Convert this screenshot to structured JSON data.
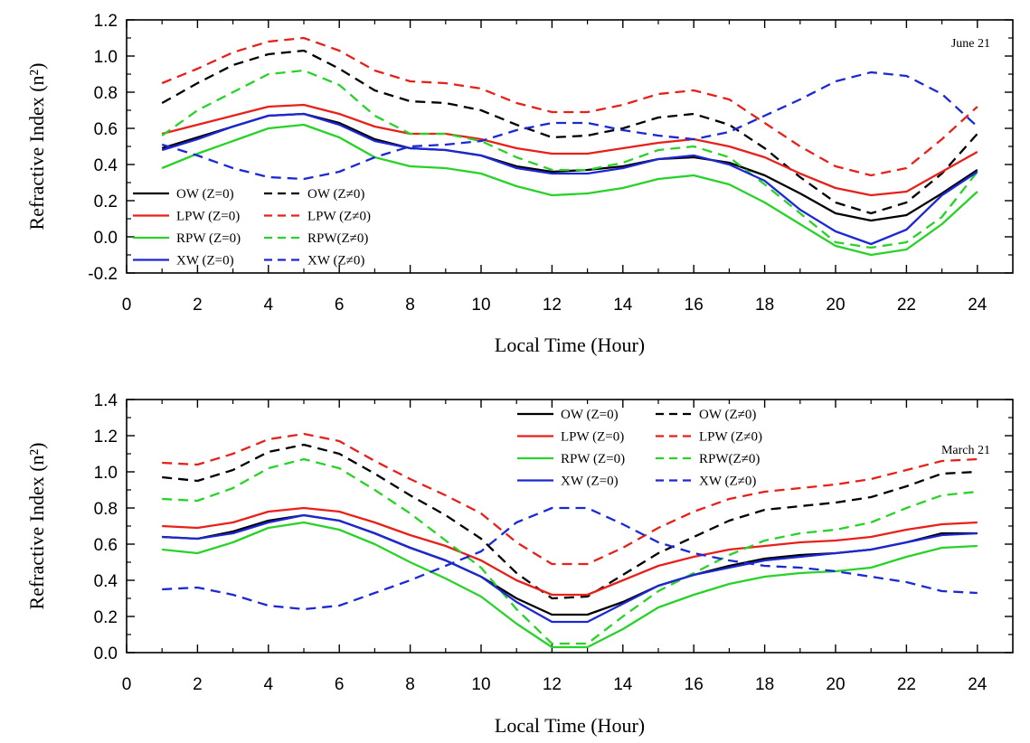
{
  "chart_data": [
    {
      "type": "line",
      "annotation": "June 21",
      "xlabel": "Local Time (Hour)",
      "ylabel": "Refractive Index (n²)",
      "xlim": [
        0,
        25
      ],
      "ylim": [
        -0.2,
        1.2
      ],
      "xticks": [
        0,
        2,
        4,
        6,
        8,
        10,
        12,
        14,
        16,
        18,
        20,
        22,
        24
      ],
      "yticks": [
        -0.2,
        0.0,
        0.2,
        0.4,
        0.6,
        0.8,
        1.0,
        1.2
      ],
      "ytick_labels": [
        "-0.2",
        "0.0",
        "0.2",
        "0.4",
        "0.6",
        "0.8",
        "1.0",
        "1.2"
      ],
      "legend_position": "bottom-left",
      "x": [
        1,
        2,
        3,
        4,
        5,
        6,
        7,
        8,
        9,
        10,
        11,
        12,
        13,
        14,
        15,
        16,
        17,
        18,
        19,
        20,
        21,
        22,
        23,
        24
      ],
      "series": [
        {
          "name": "OW (Z=0)",
          "color": "#000000",
          "dash": "solid",
          "values": [
            0.49,
            0.55,
            0.61,
            0.67,
            0.68,
            0.63,
            0.54,
            0.49,
            0.48,
            0.45,
            0.39,
            0.36,
            0.37,
            0.39,
            0.43,
            0.44,
            0.41,
            0.34,
            0.24,
            0.13,
            0.09,
            0.12,
            0.24,
            0.37
          ]
        },
        {
          "name": "OW (Z≠0)",
          "color": "#000000",
          "dash": "dashed",
          "values": [
            0.74,
            0.85,
            0.95,
            1.01,
            1.03,
            0.93,
            0.81,
            0.75,
            0.74,
            0.7,
            0.62,
            0.55,
            0.56,
            0.6,
            0.66,
            0.68,
            0.62,
            0.49,
            0.33,
            0.19,
            0.13,
            0.19,
            0.35,
            0.57
          ]
        },
        {
          "name": "LPW (Z=0)",
          "color": "#e8201a",
          "dash": "solid",
          "values": [
            0.57,
            0.62,
            0.67,
            0.72,
            0.73,
            0.68,
            0.61,
            0.57,
            0.57,
            0.54,
            0.49,
            0.46,
            0.46,
            0.49,
            0.52,
            0.54,
            0.5,
            0.44,
            0.35,
            0.27,
            0.23,
            0.25,
            0.36,
            0.47
          ]
        },
        {
          "name": "LPW (Z≠0)",
          "color": "#e8201a",
          "dash": "dashed",
          "values": [
            0.85,
            0.93,
            1.02,
            1.08,
            1.1,
            1.03,
            0.92,
            0.86,
            0.85,
            0.82,
            0.74,
            0.69,
            0.69,
            0.73,
            0.79,
            0.81,
            0.76,
            0.63,
            0.5,
            0.39,
            0.34,
            0.38,
            0.54,
            0.72
          ]
        },
        {
          "name": "RPW (Z=0)",
          "color": "#28d228",
          "dash": "solid",
          "values": [
            0.38,
            0.46,
            0.53,
            0.6,
            0.62,
            0.55,
            0.44,
            0.39,
            0.38,
            0.35,
            0.28,
            0.23,
            0.24,
            0.27,
            0.32,
            0.34,
            0.29,
            0.19,
            0.07,
            -0.05,
            -0.1,
            -0.07,
            0.07,
            0.25
          ]
        },
        {
          "name": "RPW(Z≠0)",
          "color": "#28d228",
          "dash": "dashed",
          "values": [
            0.56,
            0.7,
            0.8,
            0.9,
            0.92,
            0.84,
            0.67,
            0.57,
            0.57,
            0.53,
            0.44,
            0.37,
            0.37,
            0.41,
            0.48,
            0.5,
            0.44,
            0.29,
            0.13,
            -0.03,
            -0.06,
            -0.03,
            0.11,
            0.36
          ]
        },
        {
          "name": "XW (Z=0)",
          "color": "#1c28d2",
          "dash": "solid",
          "values": [
            0.48,
            0.54,
            0.61,
            0.67,
            0.68,
            0.62,
            0.53,
            0.49,
            0.48,
            0.45,
            0.38,
            0.35,
            0.35,
            0.38,
            0.43,
            0.45,
            0.4,
            0.31,
            0.15,
            0.03,
            -0.04,
            0.04,
            0.23,
            0.36
          ]
        },
        {
          "name": "XW  (Z≠0)",
          "color": "#1c28d2",
          "dash": "dashed",
          "values": [
            0.51,
            0.45,
            0.38,
            0.33,
            0.32,
            0.36,
            0.44,
            0.5,
            0.51,
            0.53,
            0.59,
            0.63,
            0.63,
            0.59,
            0.56,
            0.54,
            0.58,
            0.67,
            0.76,
            0.86,
            0.91,
            0.89,
            0.79,
            0.61
          ]
        }
      ]
    },
    {
      "type": "line",
      "annotation": "March 21",
      "xlabel": "Local Time (Hour)",
      "ylabel": "Refractive Index (n²)",
      "xlim": [
        0,
        25
      ],
      "ylim": [
        0.0,
        1.4
      ],
      "xticks": [
        0,
        2,
        4,
        6,
        8,
        10,
        12,
        14,
        16,
        18,
        20,
        22,
        24
      ],
      "yticks": [
        0.0,
        0.2,
        0.4,
        0.6,
        0.8,
        1.0,
        1.2,
        1.4
      ],
      "ytick_labels": [
        "0.0",
        "0.2",
        "0.4",
        "0.6",
        "0.8",
        "1.0",
        "1.2",
        "1.4"
      ],
      "legend_position": "top-center",
      "x": [
        1,
        2,
        3,
        4,
        5,
        6,
        7,
        8,
        9,
        10,
        11,
        12,
        13,
        14,
        15,
        16,
        17,
        18,
        19,
        20,
        21,
        22,
        23,
        24
      ],
      "series": [
        {
          "name": "OW (Z=0)",
          "color": "#000000",
          "dash": "solid",
          "values": [
            0.64,
            0.63,
            0.67,
            0.73,
            0.76,
            0.73,
            0.66,
            0.58,
            0.51,
            0.42,
            0.3,
            0.21,
            0.21,
            0.28,
            0.37,
            0.43,
            0.48,
            0.52,
            0.54,
            0.55,
            0.57,
            0.61,
            0.66,
            0.66
          ]
        },
        {
          "name": "OW (Z≠0)",
          "color": "#000000",
          "dash": "dashed",
          "values": [
            0.97,
            0.95,
            1.01,
            1.11,
            1.15,
            1.1,
            0.99,
            0.87,
            0.76,
            0.63,
            0.44,
            0.3,
            0.31,
            0.43,
            0.55,
            0.64,
            0.73,
            0.79,
            0.81,
            0.83,
            0.86,
            0.92,
            0.99,
            1.0
          ]
        },
        {
          "name": "LPW (Z=0)",
          "color": "#e8201a",
          "dash": "solid",
          "values": [
            0.7,
            0.69,
            0.72,
            0.78,
            0.8,
            0.78,
            0.72,
            0.65,
            0.59,
            0.51,
            0.4,
            0.32,
            0.32,
            0.4,
            0.48,
            0.53,
            0.57,
            0.59,
            0.61,
            0.62,
            0.64,
            0.68,
            0.71,
            0.72
          ]
        },
        {
          "name": "LPW (Z≠0)",
          "color": "#e8201a",
          "dash": "dashed",
          "values": [
            1.05,
            1.04,
            1.1,
            1.18,
            1.21,
            1.17,
            1.06,
            0.96,
            0.87,
            0.77,
            0.61,
            0.49,
            0.49,
            0.58,
            0.69,
            0.78,
            0.85,
            0.89,
            0.91,
            0.93,
            0.96,
            1.01,
            1.06,
            1.07
          ]
        },
        {
          "name": "RPW (Z=0)",
          "color": "#28d228",
          "dash": "solid",
          "values": [
            0.57,
            0.55,
            0.61,
            0.69,
            0.72,
            0.68,
            0.6,
            0.5,
            0.41,
            0.31,
            0.16,
            0.03,
            0.03,
            0.13,
            0.25,
            0.32,
            0.38,
            0.42,
            0.44,
            0.45,
            0.47,
            0.53,
            0.58,
            0.59
          ]
        },
        {
          "name": "RPW(Z≠0)",
          "color": "#28d228",
          "dash": "dashed",
          "values": [
            0.85,
            0.84,
            0.91,
            1.02,
            1.07,
            1.02,
            0.9,
            0.77,
            0.62,
            0.47,
            0.24,
            0.05,
            0.05,
            0.2,
            0.34,
            0.44,
            0.54,
            0.62,
            0.66,
            0.68,
            0.72,
            0.8,
            0.87,
            0.89
          ]
        },
        {
          "name": "XW (Z=0)",
          "color": "#1c28d2",
          "dash": "solid",
          "values": [
            0.64,
            0.63,
            0.66,
            0.72,
            0.76,
            0.73,
            0.66,
            0.58,
            0.51,
            0.42,
            0.28,
            0.17,
            0.17,
            0.27,
            0.37,
            0.43,
            0.47,
            0.51,
            0.53,
            0.55,
            0.57,
            0.61,
            0.65,
            0.66
          ]
        },
        {
          "name": "XW  (Z≠0)",
          "color": "#1c28d2",
          "dash": "dashed",
          "values": [
            0.35,
            0.36,
            0.32,
            0.26,
            0.24,
            0.26,
            0.33,
            0.4,
            0.48,
            0.56,
            0.72,
            0.8,
            0.8,
            0.71,
            0.61,
            0.55,
            0.51,
            0.48,
            0.47,
            0.45,
            0.42,
            0.39,
            0.34,
            0.33
          ]
        }
      ]
    }
  ]
}
